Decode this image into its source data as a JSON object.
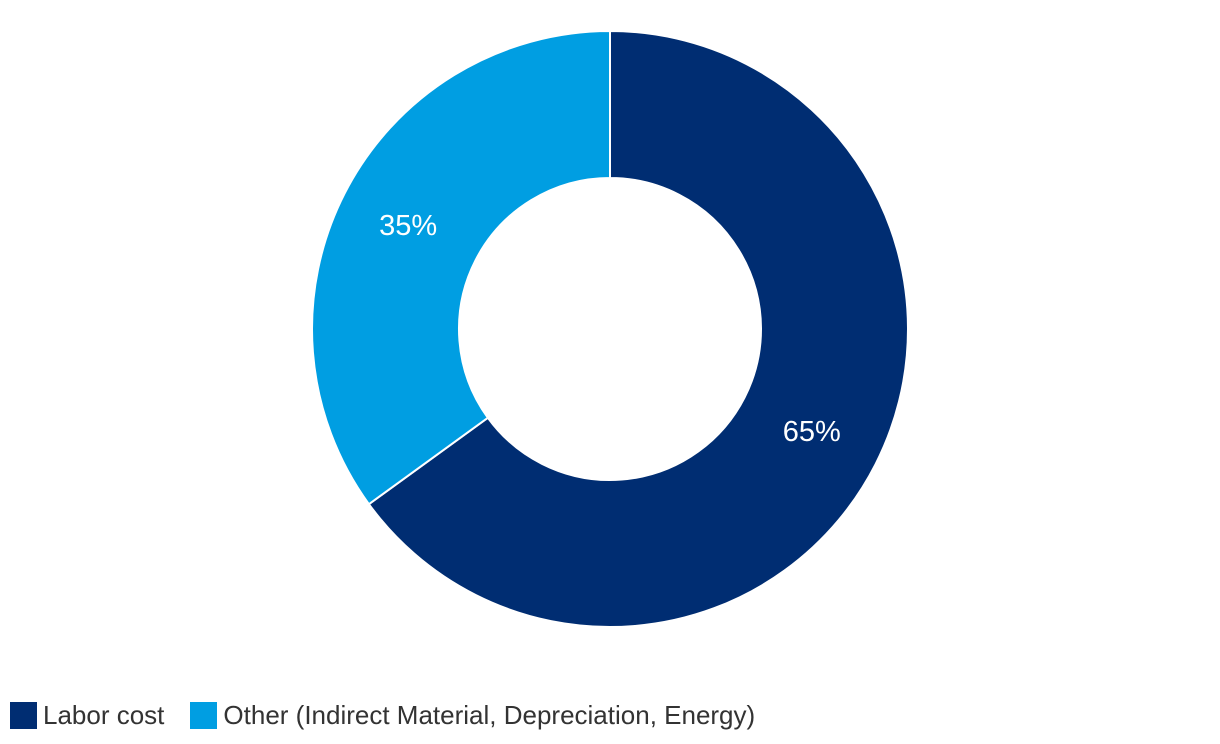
{
  "chart_data": {
    "type": "pie",
    "subtype": "donut",
    "title": "",
    "start_angle_deg": 0,
    "direction": "clockwise",
    "inner_radius_ratio": 0.507,
    "legend_position": "bottom-left",
    "value_label_color": "#ffffff",
    "background_color": "#ffffff",
    "slices": [
      {
        "label": "Labor cost",
        "value": 65,
        "value_label": "65%",
        "color": "#002d72"
      },
      {
        "label": "Other (Indirect Material, Depreciation, Energy)",
        "value": 35,
        "value_label": "35%",
        "color": "#009ee2"
      }
    ]
  }
}
